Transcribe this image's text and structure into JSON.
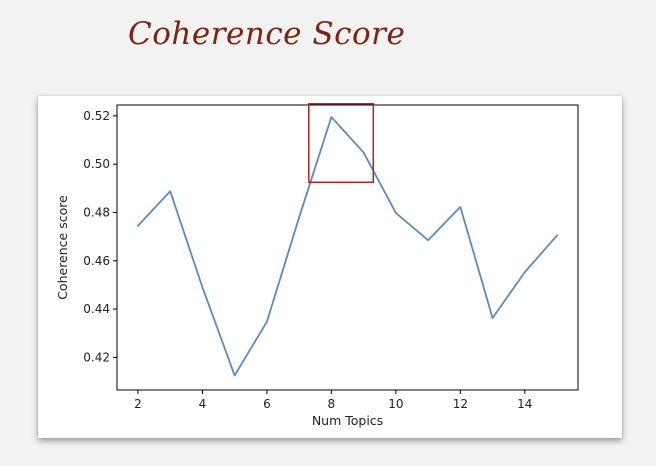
{
  "slide": {
    "title": "Coherence Score"
  },
  "highlight": {
    "color": "#b22222",
    "x_range": [
      7.3,
      9.3
    ],
    "y_range": [
      0.4925,
      0.525
    ]
  },
  "chart_data": {
    "type": "line",
    "title": "",
    "xlabel": "Num Topics",
    "ylabel": "Coherence score",
    "x": [
      2,
      3,
      4,
      5,
      6,
      7,
      8,
      9,
      10,
      11,
      12,
      13,
      14,
      15
    ],
    "series": [
      {
        "values": [
          0.4745,
          0.4888,
          0.449,
          0.4125,
          0.4348,
          0.478,
          0.5195,
          0.5048,
          0.4798,
          0.4685,
          0.4823,
          0.4363,
          0.4553,
          0.4705
        ],
        "color": "#5b8bbd"
      }
    ],
    "xlim": [
      1.35,
      15.65
    ],
    "ylim": [
      0.4065,
      0.5245
    ],
    "xticks": [
      2,
      4,
      6,
      8,
      10,
      12,
      14
    ],
    "yticks": [
      0.42,
      0.44,
      0.46,
      0.48,
      0.5,
      0.52
    ],
    "ytick_labels": [
      "0.42",
      "0.44",
      "0.46",
      "0.48",
      "0.50",
      "0.52"
    ],
    "grid": false,
    "legend": "none"
  }
}
